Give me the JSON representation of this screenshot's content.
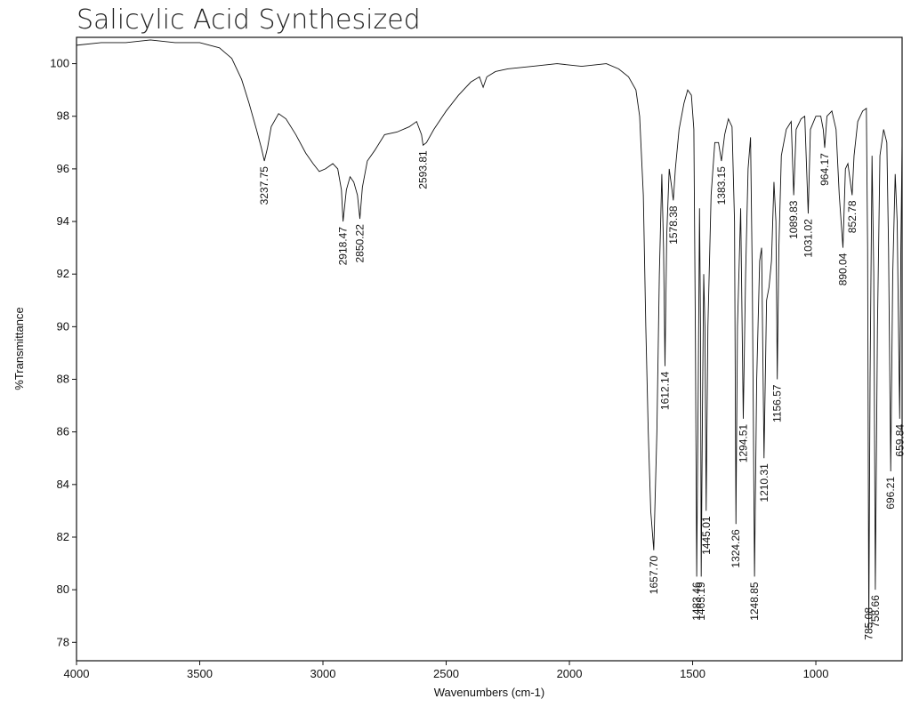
{
  "chart_data": {
    "type": "line",
    "title": "Salicylic Acid Synthesized",
    "xlabel": "Wavenumbers (cm-1)",
    "ylabel": "%Transmittance",
    "xlim": [
      4000,
      650
    ],
    "ylim": [
      77.3,
      101
    ],
    "x_ticks": [
      4000,
      3500,
      3000,
      2500,
      2000,
      1500,
      1000
    ],
    "y_ticks": [
      78,
      80,
      82,
      84,
      86,
      88,
      90,
      92,
      94,
      96,
      98,
      100
    ],
    "grid": false,
    "line_color": "#111111",
    "series": [
      {
        "points": [
          [
            4000,
            100.7
          ],
          [
            3900,
            100.8
          ],
          [
            3800,
            100.8
          ],
          [
            3700,
            100.9
          ],
          [
            3600,
            100.8
          ],
          [
            3500,
            100.8
          ],
          [
            3420,
            100.6
          ],
          [
            3370,
            100.2
          ],
          [
            3330,
            99.4
          ],
          [
            3300,
            98.5
          ],
          [
            3270,
            97.5
          ],
          [
            3250,
            96.8
          ],
          [
            3237.75,
            96.3
          ],
          [
            3225,
            96.8
          ],
          [
            3210,
            97.6
          ],
          [
            3180,
            98.1
          ],
          [
            3150,
            97.9
          ],
          [
            3110,
            97.3
          ],
          [
            3070,
            96.6
          ],
          [
            3040,
            96.2
          ],
          [
            3015,
            95.9
          ],
          [
            2990,
            96.0
          ],
          [
            2960,
            96.2
          ],
          [
            2940,
            96.0
          ],
          [
            2925,
            95.2
          ],
          [
            2918.47,
            94.0
          ],
          [
            2905,
            95.2
          ],
          [
            2890,
            95.7
          ],
          [
            2875,
            95.5
          ],
          [
            2860,
            95.0
          ],
          [
            2850.22,
            94.1
          ],
          [
            2840,
            95.3
          ],
          [
            2820,
            96.3
          ],
          [
            2790,
            96.7
          ],
          [
            2750,
            97.3
          ],
          [
            2700,
            97.4
          ],
          [
            2650,
            97.6
          ],
          [
            2620,
            97.8
          ],
          [
            2600,
            97.3
          ],
          [
            2593.81,
            96.9
          ],
          [
            2580,
            97.0
          ],
          [
            2550,
            97.5
          ],
          [
            2500,
            98.2
          ],
          [
            2450,
            98.8
          ],
          [
            2400,
            99.3
          ],
          [
            2365,
            99.5
          ],
          [
            2350,
            99.1
          ],
          [
            2335,
            99.5
          ],
          [
            2300,
            99.7
          ],
          [
            2250,
            99.8
          ],
          [
            2150,
            99.9
          ],
          [
            2050,
            100.0
          ],
          [
            1950,
            99.9
          ],
          [
            1850,
            100.0
          ],
          [
            1800,
            99.8
          ],
          [
            1760,
            99.5
          ],
          [
            1730,
            99.0
          ],
          [
            1715,
            98.0
          ],
          [
            1700,
            95.0
          ],
          [
            1690,
            90.0
          ],
          [
            1680,
            86.0
          ],
          [
            1670,
            83.0
          ],
          [
            1657.7,
            81.5
          ],
          [
            1645,
            86.0
          ],
          [
            1635,
            92.0
          ],
          [
            1625,
            95.8
          ],
          [
            1618,
            93.0
          ],
          [
            1612.14,
            88.5
          ],
          [
            1605,
            93.5
          ],
          [
            1595,
            96.0
          ],
          [
            1585,
            95.3
          ],
          [
            1578.38,
            94.8
          ],
          [
            1570,
            96.0
          ],
          [
            1555,
            97.5
          ],
          [
            1535,
            98.5
          ],
          [
            1520,
            99.0
          ],
          [
            1505,
            98.8
          ],
          [
            1495,
            97.5
          ],
          [
            1489,
            90.0
          ],
          [
            1483.46,
            80.5
          ],
          [
            1477,
            88.0
          ],
          [
            1472,
            94.5
          ],
          [
            1468,
            90.0
          ],
          [
            1465.19,
            80.5
          ],
          [
            1460,
            87.0
          ],
          [
            1455,
            92.0
          ],
          [
            1450,
            90.0
          ],
          [
            1445.01,
            83.0
          ],
          [
            1438,
            90.0
          ],
          [
            1425,
            95.0
          ],
          [
            1410,
            97.0
          ],
          [
            1395,
            97.0
          ],
          [
            1383.15,
            96.3
          ],
          [
            1370,
            97.3
          ],
          [
            1355,
            97.9
          ],
          [
            1340,
            97.6
          ],
          [
            1330,
            94.0
          ],
          [
            1324.26,
            82.5
          ],
          [
            1318,
            90.0
          ],
          [
            1305,
            94.5
          ],
          [
            1294.51,
            86.5
          ],
          [
            1285,
            92.0
          ],
          [
            1275,
            96.0
          ],
          [
            1265,
            97.2
          ],
          [
            1258,
            92.0
          ],
          [
            1248.85,
            80.5
          ],
          [
            1240,
            88.0
          ],
          [
            1228,
            92.5
          ],
          [
            1220,
            93.0
          ],
          [
            1210.31,
            85.0
          ],
          [
            1200,
            91.0
          ],
          [
            1190,
            91.5
          ],
          [
            1180,
            92.5
          ],
          [
            1170,
            95.5
          ],
          [
            1162,
            94.0
          ],
          [
            1156.57,
            88.0
          ],
          [
            1150,
            93.0
          ],
          [
            1140,
            96.5
          ],
          [
            1120,
            97.5
          ],
          [
            1100,
            97.8
          ],
          [
            1089.83,
            95.0
          ],
          [
            1080,
            97.5
          ],
          [
            1060,
            97.9
          ],
          [
            1045,
            98.0
          ],
          [
            1031.02,
            94.3
          ],
          [
            1022,
            97.5
          ],
          [
            1000,
            98.0
          ],
          [
            980,
            98.0
          ],
          [
            970,
            97.5
          ],
          [
            964.17,
            96.8
          ],
          [
            955,
            98.0
          ],
          [
            935,
            98.2
          ],
          [
            918,
            97.5
          ],
          [
            905,
            95.0
          ],
          [
            890.04,
            93.0
          ],
          [
            880,
            96.0
          ],
          [
            870,
            96.2
          ],
          [
            860,
            95.5
          ],
          [
            852.78,
            95.0
          ],
          [
            845,
            96.5
          ],
          [
            830,
            97.8
          ],
          [
            810,
            98.2
          ],
          [
            795,
            98.3
          ],
          [
            790,
            93.0
          ],
          [
            785.08,
            78.5
          ],
          [
            780,
            88.0
          ],
          [
            772,
            96.5
          ],
          [
            765,
            92.0
          ],
          [
            758.66,
            80.0
          ],
          [
            750,
            90.0
          ],
          [
            740,
            96.5
          ],
          [
            725,
            97.5
          ],
          [
            712,
            97.0
          ],
          [
            705,
            93.0
          ],
          [
            696.21,
            84.5
          ],
          [
            688,
            92.0
          ],
          [
            678,
            95.8
          ],
          [
            670,
            94.0
          ],
          [
            659.84,
            86.5
          ],
          [
            655,
            93.0
          ],
          [
            650,
            97.0
          ]
        ]
      }
    ],
    "peaks": [
      {
        "wavenumber": 3237.75,
        "label": "3237.75"
      },
      {
        "wavenumber": 2918.47,
        "label": "2918.47"
      },
      {
        "wavenumber": 2850.22,
        "label": "2850.22"
      },
      {
        "wavenumber": 2593.81,
        "label": "2593.81"
      },
      {
        "wavenumber": 1657.7,
        "label": "1657.70"
      },
      {
        "wavenumber": 1612.14,
        "label": "1612.14"
      },
      {
        "wavenumber": 1578.38,
        "label": "1578.38"
      },
      {
        "wavenumber": 1483.46,
        "label": "1483.46"
      },
      {
        "wavenumber": 1465.19,
        "label": "1465.19"
      },
      {
        "wavenumber": 1445.01,
        "label": "1445.01"
      },
      {
        "wavenumber": 1383.15,
        "label": "1383.15"
      },
      {
        "wavenumber": 1324.26,
        "label": "1324.26"
      },
      {
        "wavenumber": 1294.51,
        "label": "1294.51"
      },
      {
        "wavenumber": 1248.85,
        "label": "1248.85"
      },
      {
        "wavenumber": 1210.31,
        "label": "1210.31"
      },
      {
        "wavenumber": 1156.57,
        "label": "1156.57"
      },
      {
        "wavenumber": 1089.83,
        "label": "1089.83"
      },
      {
        "wavenumber": 1031.02,
        "label": "1031.02"
      },
      {
        "wavenumber": 964.17,
        "label": "964.17"
      },
      {
        "wavenumber": 890.04,
        "label": "890.04"
      },
      {
        "wavenumber": 852.78,
        "label": "852.78"
      },
      {
        "wavenumber": 785.08,
        "label": "785.08"
      },
      {
        "wavenumber": 758.66,
        "label": "758.66"
      },
      {
        "wavenumber": 696.21,
        "label": "696.21"
      },
      {
        "wavenumber": 659.84,
        "label": "659.84"
      }
    ]
  }
}
